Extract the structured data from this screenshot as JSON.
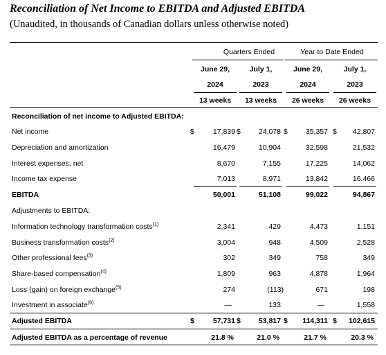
{
  "title": "Reconciliation of Net Income to EBITDA and Adjusted EBITDA",
  "subtitle": "(Unaudited, in thousands of Canadian dollars unless otherwise noted)",
  "headers": {
    "quarters_ended": "Quarters Ended",
    "year_to_date_ended": "Year to Date Ended",
    "col1": {
      "date": "June 29,",
      "year": "2024",
      "period": "13 weeks"
    },
    "col2": {
      "date": "July 1,",
      "year": "2023",
      "period": "13 weeks"
    },
    "col3": {
      "date": "June 29,",
      "year": "2024",
      "period": "26 weeks"
    },
    "col4": {
      "date": "July 1,",
      "year": "2023",
      "period": "26 weeks"
    }
  },
  "section_recon": "Reconciliation of net income to Adjusted EBITDA:",
  "section_adjustments": "Adjustments to EBITDA:",
  "currency": "$",
  "rows": {
    "net_income": {
      "label": "Net income",
      "values": [
        "17,839",
        "24,078",
        "35,357",
        "42,807"
      ]
    },
    "depreciation": {
      "label": "Depreciation and amortization",
      "values": [
        "16,479",
        "10,904",
        "32,598",
        "21,532"
      ]
    },
    "interest": {
      "label": "Interest expenses, net",
      "values": [
        "8,670",
        "7,155",
        "17,225",
        "14,062"
      ]
    },
    "income_tax": {
      "label": "Income tax expense",
      "values": [
        "7,013",
        "8,971",
        "13,842",
        "16,466"
      ]
    },
    "ebitda": {
      "label": "EBITDA",
      "values": [
        "50,001",
        "51,108",
        "99,022",
        "94,867"
      ]
    },
    "it_transformation": {
      "label": "Information technology transformation costs",
      "footnote": "(1)",
      "values": [
        "2,341",
        "429",
        "4,473",
        "1,151"
      ]
    },
    "business_transformation": {
      "label": "Business transformation costs",
      "footnote": "(2)",
      "values": [
        "3,004",
        "948",
        "4,509",
        "2,528"
      ]
    },
    "professional_fees": {
      "label": "Other professional fees",
      "footnote": "(3)",
      "values": [
        "302",
        "349",
        "758",
        "349"
      ]
    },
    "share_based": {
      "label": "Share-based compensation",
      "footnote": "(4)",
      "values": [
        "1,809",
        "963",
        "4,878",
        "1,964"
      ]
    },
    "fx_loss": {
      "label": "Loss (gain) on foreign exchange",
      "footnote": "(5)",
      "values": [
        "274",
        "(113)",
        "671",
        "198"
      ]
    },
    "associate": {
      "label": "Investment in associate",
      "footnote": "(6)",
      "values": [
        "—",
        "133",
        "—",
        "1,558"
      ]
    },
    "adjusted_ebitda": {
      "label": "Adjusted EBITDA",
      "values": [
        "57,731",
        "53,817",
        "114,311",
        "102,615"
      ]
    },
    "adjusted_margin": {
      "label": "Adjusted EBITDA as a percentage of revenue",
      "values": [
        "21.8 %",
        "21.0 %",
        "21.7 %",
        "20.3 %"
      ]
    }
  }
}
